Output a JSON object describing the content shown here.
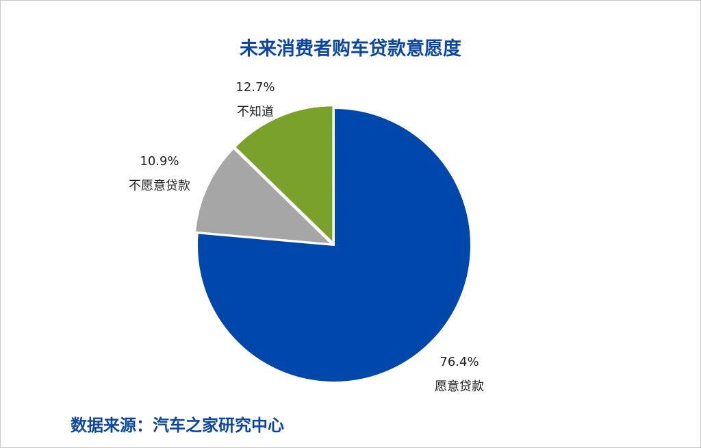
{
  "page": {
    "title": "未来消费者购车贷款意愿度",
    "source": "数据来源：汽车之家研究中心"
  },
  "chart_data": {
    "type": "pie",
    "title": "未来消费者购车贷款意愿度",
    "start": "12 o'clock, clockwise",
    "slices": [
      {
        "label": "愿意贷款",
        "value": 76.4,
        "value_label": "76.4%",
        "color": "#0047ab",
        "exploded": false
      },
      {
        "label": "不愿意贷款",
        "value": 10.9,
        "value_label": "10.9%",
        "color": "#a6a6a6",
        "exploded": true
      },
      {
        "label": "不知道",
        "value": 12.7,
        "value_label": "12.7%",
        "color": "#7aa22a",
        "exploded": true
      }
    ],
    "legend": "none"
  }
}
